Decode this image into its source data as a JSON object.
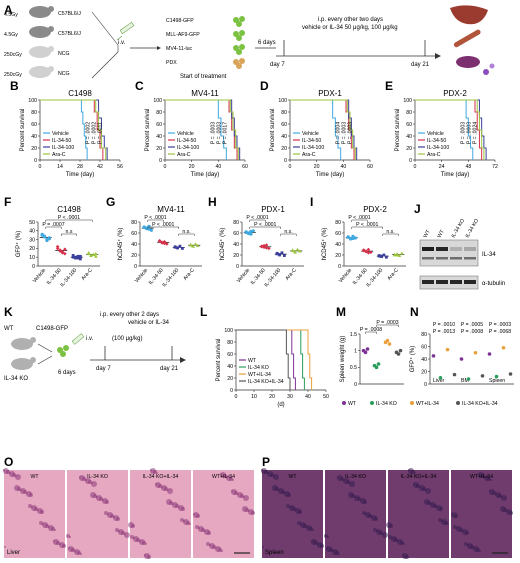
{
  "panels": {
    "A": {
      "label": "A",
      "mice": [
        {
          "dose": "4.5Gy",
          "strain": "C57BL6/J",
          "color": "#8a8a8a"
        },
        {
          "dose": "4.5Gy",
          "strain": "C57BL6/J",
          "color": "#8a8a8a"
        },
        {
          "dose": "250cGy",
          "strain": "NCG",
          "color": "#d0d0d0"
        },
        {
          "dose": "250cGy",
          "strain": "NCG",
          "color": "#d0d0d0"
        }
      ],
      "route": "i.v.",
      "cells": [
        "C1498-GFP",
        "MLL-AF9-GFP",
        "MV4-11-luc",
        "PDX"
      ],
      "cell_colors": [
        "#7cc242",
        "#7cc242",
        "#7cc242",
        "#d9a55a"
      ],
      "days6": "6 days",
      "treatment": "i.p. every other two days",
      "treatment2": "vehicle or IL-34 50 μg/kg, 100 μg/kg",
      "day7": "day 7",
      "day21": "day 21",
      "start": "Start of treatment"
    },
    "B": {
      "label": "B",
      "title": "C1498"
    },
    "C": {
      "label": "C",
      "title": "MV4-11"
    },
    "D": {
      "label": "D",
      "title": "PDX-1"
    },
    "E": {
      "label": "E",
      "title": "PDX-2"
    },
    "F": {
      "label": "F",
      "title": "C1498",
      "ylabel": "GFP⁺ (%)"
    },
    "G": {
      "label": "G",
      "title": "MV4-11",
      "ylabel": "hCD45⁺ (%)"
    },
    "H": {
      "label": "H",
      "title": "PDX-1",
      "ylabel": "hCD45⁺ (%)"
    },
    "I": {
      "label": "I",
      "title": "PDX-2",
      "ylabel": "hCD45⁺ (%)"
    },
    "J": {
      "label": "J",
      "lanes": [
        "WT",
        "WT",
        "IL-34 KO",
        "IL-34 KO"
      ],
      "bands": [
        "IL-34",
        "α-tubulin"
      ]
    },
    "K": {
      "label": "K",
      "wt": "WT",
      "ko": "IL-34 KO",
      "cell": "C1498-GFP",
      "route": "i.v.",
      "days6": "6 days",
      "treatment": "i.p. every other 2 days",
      "treatment2": "vehicle or IL-34",
      "treatment3": "(100 μg/kg)",
      "day7": "day 7",
      "day21": "day 21"
    },
    "L": {
      "label": "L",
      "xlabel": "(d)",
      "ylabel": "Percent survival"
    },
    "M": {
      "label": "M",
      "ylabel": "Spleen weight (g)"
    },
    "N": {
      "label": "N",
      "ylabel": "GFP⁺ (%)",
      "groups": [
        "Liver",
        "BM",
        "Spleen"
      ]
    },
    "O": {
      "label": "O",
      "tiles": [
        "WT",
        "IL-34 KO",
        "IL-34 KO+IL-34",
        "WT+IL-34"
      ],
      "organ": "Liver"
    },
    "P": {
      "label": "P",
      "tiles": [
        "WT",
        "IL-34 KO",
        "IL-34 KO+IL-34",
        "WT+IL-34"
      ],
      "organ": "Spleen"
    }
  },
  "legend_survival": [
    {
      "name": "Vehicle",
      "color": "#3fa9e0"
    },
    {
      "name": "IL-34-50",
      "color": "#d6304a"
    },
    {
      "name": "IL-34-100",
      "color": "#3b3f9c"
    },
    {
      "name": "Ara-C",
      "color": "#9bc53d"
    }
  ],
  "legend_ko": [
    {
      "name": "WT",
      "color": "#7b3294"
    },
    {
      "name": "IL-34 KO",
      "color": "#2a9d5c"
    },
    {
      "name": "WT+IL-34",
      "color": "#e9a03b"
    },
    {
      "name": "IL-34 KO+IL-34",
      "color": "#555555"
    }
  ],
  "legend_mn": [
    {
      "name": "WT",
      "color": "#7b3294"
    },
    {
      "name": "IL-34 KO",
      "color": "#2a9d5c"
    },
    {
      "name": "WT+IL-34",
      "color": "#e9a03b"
    },
    {
      "name": "IL-34 KO+IL-34",
      "color": "#555555"
    }
  ],
  "chart_data": [
    {
      "type": "line",
      "panel": "B",
      "title": "C1498",
      "xlabel": "Time (day)",
      "ylabel": "Percent survival",
      "xticks": [
        0,
        14,
        28,
        42,
        56
      ],
      "yticks": [
        0,
        20,
        40,
        60,
        80,
        100
      ],
      "xlim": [
        0,
        56
      ],
      "ylim": [
        0,
        100
      ],
      "pvalues": [
        "P = .0002",
        "P = .0002",
        "P = .0011"
      ],
      "series": [
        {
          "name": "Vehicle",
          "x": [
            0,
            28,
            29,
            30,
            31,
            32,
            33
          ],
          "y": [
            100,
            100,
            80,
            60,
            40,
            20,
            0
          ]
        },
        {
          "name": "IL-34-50",
          "x": [
            0,
            36,
            38,
            40,
            42,
            44
          ],
          "y": [
            100,
            100,
            80,
            50,
            20,
            0
          ]
        },
        {
          "name": "IL-34-100",
          "x": [
            0,
            39,
            41,
            43,
            45,
            47
          ],
          "y": [
            100,
            100,
            70,
            40,
            20,
            0
          ]
        },
        {
          "name": "Ara-C",
          "x": [
            0,
            37,
            39,
            41,
            43,
            46
          ],
          "y": [
            100,
            100,
            80,
            50,
            20,
            0
          ]
        }
      ]
    },
    {
      "type": "line",
      "panel": "C",
      "title": "MV4-11",
      "xlabel": "Time (day)",
      "ylabel": "Percent survival",
      "xticks": [
        0,
        20,
        40,
        60
      ],
      "yticks": [
        0,
        20,
        40,
        60,
        80,
        100
      ],
      "xlim": [
        0,
        60
      ],
      "ylim": [
        0,
        100
      ],
      "pvalues": [
        "P = .0003",
        "P = .0003",
        "P = .0017"
      ],
      "series": [
        {
          "name": "Vehicle",
          "x": [
            0,
            38,
            40,
            42,
            44,
            46
          ],
          "y": [
            100,
            100,
            70,
            40,
            20,
            0
          ]
        },
        {
          "name": "IL-34-50",
          "x": [
            0,
            46,
            48,
            50,
            52,
            54
          ],
          "y": [
            100,
            100,
            80,
            50,
            20,
            0
          ]
        },
        {
          "name": "IL-34-100",
          "x": [
            0,
            48,
            50,
            52,
            54,
            56
          ],
          "y": [
            100,
            100,
            70,
            40,
            20,
            0
          ]
        },
        {
          "name": "Ara-C",
          "x": [
            0,
            47,
            49,
            51,
            53,
            55
          ],
          "y": [
            100,
            100,
            80,
            50,
            20,
            0
          ]
        }
      ]
    },
    {
      "type": "line",
      "panel": "D",
      "title": "PDX-1",
      "xlabel": "Time (day)",
      "ylabel": "Percent survival",
      "xticks": [
        0,
        20,
        40,
        60
      ],
      "yticks": [
        0,
        20,
        40,
        60,
        80,
        100
      ],
      "xlim": [
        0,
        60
      ],
      "ylim": [
        0,
        100
      ],
      "pvalues": [
        "P = .0004",
        "P = .0003",
        "P = .0003"
      ],
      "series": [
        {
          "name": "Vehicle",
          "x": [
            0,
            30,
            32,
            34,
            36,
            38
          ],
          "y": [
            100,
            100,
            70,
            40,
            20,
            0
          ]
        },
        {
          "name": "IL-34-50",
          "x": [
            0,
            40,
            42,
            44,
            46,
            48
          ],
          "y": [
            100,
            100,
            80,
            50,
            20,
            0
          ]
        },
        {
          "name": "IL-34-100",
          "x": [
            0,
            42,
            44,
            46,
            48,
            50
          ],
          "y": [
            100,
            100,
            70,
            40,
            20,
            0
          ]
        },
        {
          "name": "Ara-C",
          "x": [
            0,
            41,
            43,
            45,
            47,
            49
          ],
          "y": [
            100,
            100,
            80,
            50,
            20,
            0
          ]
        }
      ]
    },
    {
      "type": "line",
      "panel": "E",
      "title": "PDX-2",
      "xlabel": "Time (day)",
      "ylabel": "Percent survival",
      "xticks": [
        0,
        24,
        48,
        72
      ],
      "yticks": [
        0,
        20,
        40,
        60,
        80,
        100
      ],
      "xlim": [
        0,
        72
      ],
      "ylim": [
        0,
        100
      ],
      "pvalues": [
        "P = .0003",
        "P = .0003",
        "P = .0024"
      ],
      "series": [
        {
          "name": "Vehicle",
          "x": [
            0,
            44,
            46,
            48,
            50,
            52
          ],
          "y": [
            100,
            100,
            70,
            40,
            20,
            0
          ]
        },
        {
          "name": "IL-34-50",
          "x": [
            0,
            52,
            54,
            56,
            58,
            60
          ],
          "y": [
            100,
            100,
            80,
            50,
            20,
            0
          ]
        },
        {
          "name": "IL-34-100",
          "x": [
            0,
            56,
            58,
            60,
            62,
            64
          ],
          "y": [
            100,
            100,
            70,
            40,
            20,
            0
          ]
        },
        {
          "name": "Ara-C",
          "x": [
            0,
            54,
            56,
            58,
            60,
            62
          ],
          "y": [
            100,
            100,
            80,
            50,
            20,
            0
          ]
        }
      ]
    },
    {
      "type": "scatter",
      "panel": "F",
      "title": "C1498",
      "ylabel": "GFP⁺ (%)",
      "ylim": [
        0,
        50
      ],
      "yticks": [
        0,
        10,
        20,
        30,
        40,
        50
      ],
      "categories": [
        "Vehicle",
        "IL-34-50",
        "IL-34-100",
        "Ara-C"
      ],
      "values": [
        [
          35,
          33,
          30,
          31,
          36,
          34,
          29,
          32
        ],
        [
          22,
          18,
          16,
          14,
          20,
          17,
          15,
          19
        ],
        [
          10,
          9,
          11,
          8,
          12,
          10,
          9,
          11
        ],
        [
          14,
          12,
          13,
          11,
          15,
          12,
          13,
          14
        ]
      ],
      "pvalues": [
        "P < .0001",
        "P = .0007",
        "n.s"
      ]
    },
    {
      "type": "scatter",
      "panel": "G",
      "title": "MV4-11",
      "ylabel": "hCD45⁺ (%)",
      "ylim": [
        0,
        80
      ],
      "yticks": [
        0,
        20,
        40,
        60,
        80
      ],
      "categories": [
        "Vehicle",
        "IL-34-50",
        "IL-34-100",
        "Ara-C"
      ],
      "values": [
        [
          70,
          68,
          72,
          65,
          71,
          69,
          67
        ],
        [
          45,
          42,
          44,
          40,
          46,
          43,
          41
        ],
        [
          35,
          33,
          36,
          32,
          34,
          33
        ],
        [
          38,
          36,
          40,
          37,
          39,
          36
        ]
      ],
      "pvalues": [
        "P < .0001",
        "P < .0001",
        "n.s."
      ]
    },
    {
      "type": "scatter",
      "panel": "H",
      "title": "PDX-1",
      "ylabel": "hCD45⁺ (%)",
      "ylim": [
        0,
        80
      ],
      "yticks": [
        0,
        20,
        40,
        60,
        80
      ],
      "categories": [
        "Vehicle",
        "IL-34-50",
        "IL-34-100",
        "Ara-C"
      ],
      "values": [
        [
          62,
          60,
          58,
          64,
          61,
          59,
          63
        ],
        [
          36,
          34,
          38,
          32,
          35,
          37,
          33
        ],
        [
          22,
          20,
          24,
          19,
          23,
          21
        ],
        [
          28,
          26,
          30,
          27,
          29,
          25
        ]
      ],
      "pvalues": [
        "P < .0001",
        "P < .0001",
        "n.s."
      ]
    },
    {
      "type": "scatter",
      "panel": "I",
      "title": "PDX-2",
      "ylabel": "hCD45⁺ (%)",
      "ylim": [
        0,
        80
      ],
      "yticks": [
        0,
        20,
        40,
        60,
        80
      ],
      "categories": [
        "Vehicle",
        "IL-34-50",
        "IL-34-100",
        "Ara-C"
      ],
      "values": [
        [
          52,
          50,
          54,
          51,
          53,
          49,
          50
        ],
        [
          28,
          26,
          30,
          25,
          29,
          27,
          24
        ],
        [
          18,
          17,
          20,
          16,
          19,
          18
        ],
        [
          20,
          22,
          19,
          23,
          21,
          20
        ]
      ],
      "pvalues": [
        "P < .0001",
        "P < .0001",
        "n.s."
      ]
    },
    {
      "type": "line",
      "panel": "L",
      "xlabel": "(d)",
      "ylabel": "Percent survival",
      "xticks": [
        0,
        10,
        20,
        30,
        40,
        50
      ],
      "yticks": [
        0,
        20,
        40,
        60,
        80,
        100
      ],
      "xlim": [
        0,
        50
      ],
      "ylim": [
        0,
        100
      ],
      "series": [
        {
          "name": "WT",
          "x": [
            0,
            30,
            31,
            32,
            33
          ],
          "y": [
            100,
            100,
            60,
            20,
            0
          ]
        },
        {
          "name": "IL-34 KO",
          "x": [
            0,
            35,
            36,
            37,
            38
          ],
          "y": [
            100,
            100,
            60,
            20,
            0
          ]
        },
        {
          "name": "WT+IL-34",
          "x": [
            0,
            39,
            40,
            41,
            42
          ],
          "y": [
            100,
            100,
            60,
            20,
            0
          ]
        },
        {
          "name": "IL-34 KO+IL-34",
          "x": [
            0,
            27,
            28,
            29,
            30
          ],
          "y": [
            100,
            100,
            60,
            20,
            0
          ]
        }
      ]
    },
    {
      "type": "scatter",
      "panel": "M",
      "ylabel": "Spleen weight (g)",
      "ylim": [
        0,
        1.5
      ],
      "yticks": [
        0,
        0.5,
        1.0,
        1.5
      ],
      "categories": [
        "WT",
        "IL-34 KO",
        "WT+IL-34",
        "IL-34 KO+IL-34"
      ],
      "values": [
        [
          1.0,
          0.95,
          1.05
        ],
        [
          0.55,
          0.5,
          0.6
        ],
        [
          1.25,
          1.3,
          1.2
        ],
        [
          0.95,
          0.9,
          1.0
        ]
      ],
      "pvalues": [
        "P = .0008",
        "P = .0003"
      ]
    },
    {
      "type": "scatter",
      "panel": "N",
      "ylabel": "GFP⁺ (%)",
      "ylim": [
        0,
        80
      ],
      "yticks": [
        0,
        20,
        40,
        60,
        80
      ],
      "groups": [
        "Liver",
        "BM",
        "Spleen"
      ],
      "series": [
        {
          "name": "WT",
          "values": [
            45,
            40,
            48
          ]
        },
        {
          "name": "IL-34 KO",
          "values": [
            10,
            8,
            12
          ]
        },
        {
          "name": "WT+IL-34",
          "values": [
            55,
            50,
            58
          ]
        },
        {
          "name": "IL-34 KO+IL-34",
          "values": [
            15,
            13,
            16
          ]
        }
      ],
      "pvalues": [
        "P = .0010",
        "P = .0013",
        "P = .0005",
        "P = .0008",
        "P = .0003",
        "P = .0068"
      ]
    }
  ]
}
